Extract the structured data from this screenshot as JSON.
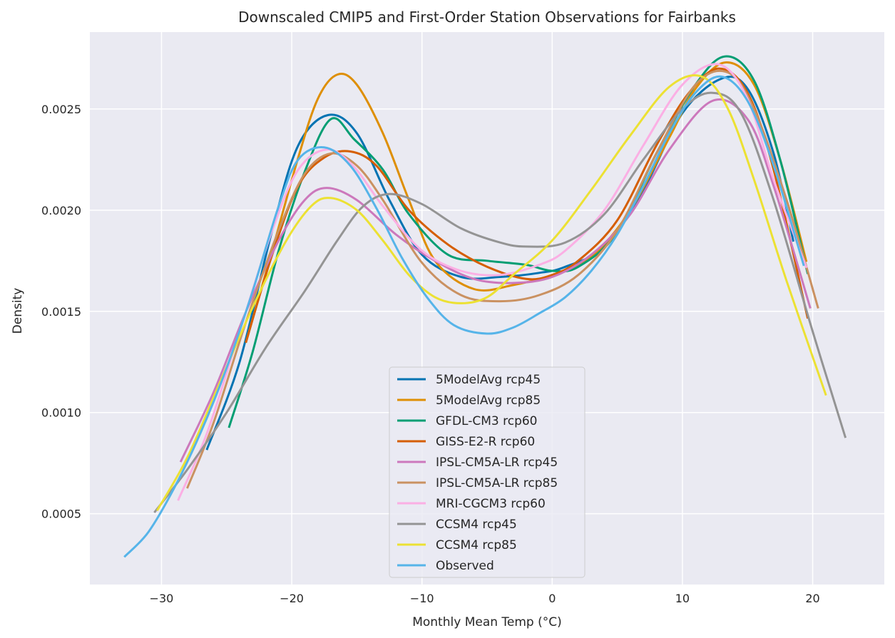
{
  "chart_data": {
    "type": "line",
    "title": "Downscaled CMIP5 and First-Order Station Observations for Fairbanks",
    "xlabel": "Monthly Mean Temp (°C)",
    "ylabel": "Density",
    "xlim": [
      -35.5,
      25.5
    ],
    "ylim": [
      0.00015,
      0.00288
    ],
    "xticks": [
      -30,
      -20,
      -10,
      0,
      10,
      20
    ],
    "xtick_labels": [
      "−30",
      "−20",
      "−10",
      "0",
      "10",
      "20"
    ],
    "yticks": [
      0.0005,
      0.001,
      0.0015,
      0.002,
      0.0025
    ],
    "ytick_labels": [
      "0.0005",
      "0.0010",
      "0.0015",
      "0.0020",
      "0.0025"
    ],
    "grid": true,
    "legend_position": "lower-center",
    "series": [
      {
        "name": "5ModelAvg rcp45",
        "color": "#0173b2",
        "x": [
          -26.5,
          -24,
          -21.5,
          -19.5,
          -17.2,
          -15,
          -12.5,
          -10,
          -7,
          -4,
          -1,
          1,
          4,
          7,
          10,
          13,
          15,
          17,
          18.5
        ],
        "y": [
          0.00082,
          0.00125,
          0.0019,
          0.00232,
          0.00247,
          0.00238,
          0.00205,
          0.00178,
          0.00167,
          0.00167,
          0.00169,
          0.00172,
          0.00182,
          0.0021,
          0.00248,
          0.00265,
          0.0026,
          0.00228,
          0.00185
        ]
      },
      {
        "name": "5ModelAvg rcp85",
        "color": "#de8f05",
        "x": [
          -23.5,
          -21.5,
          -19.5,
          -18,
          -16.5,
          -15,
          -13,
          -11,
          -9,
          -6,
          -3,
          0,
          3,
          6,
          9,
          11,
          13.3,
          15.5,
          17.5,
          19.5
        ],
        "y": [
          0.00135,
          0.0018,
          0.00226,
          0.00255,
          0.00267,
          0.00262,
          0.00238,
          0.00205,
          0.00175,
          0.00161,
          0.00163,
          0.00168,
          0.00177,
          0.002,
          0.00236,
          0.0026,
          0.00273,
          0.00262,
          0.00225,
          0.00175
        ]
      },
      {
        "name": "GFDL-CM3 rcp60",
        "color": "#029e73",
        "x": [
          -24.8,
          -23,
          -21,
          -19,
          -17,
          -15.2,
          -13,
          -11,
          -8,
          -5,
          -2,
          0,
          2,
          5,
          8,
          11,
          13.3,
          15.5,
          17.5,
          19.6
        ],
        "y": [
          0.00093,
          0.0013,
          0.0018,
          0.00219,
          0.00245,
          0.00235,
          0.0022,
          0.00198,
          0.00178,
          0.00175,
          0.00173,
          0.0017,
          0.00172,
          0.00189,
          0.00228,
          0.00262,
          0.00276,
          0.00264,
          0.00225,
          0.00169
        ]
      },
      {
        "name": "GISS-E2-R rcp60",
        "color": "#d55e00",
        "x": [
          -23.5,
          -21.5,
          -19.5,
          -17.5,
          -15.5,
          -13.5,
          -11,
          -8,
          -5,
          -2,
          0,
          2,
          5,
          8,
          10.5,
          12.8,
          15,
          17,
          19.6
        ],
        "y": [
          0.00135,
          0.00178,
          0.00212,
          0.00226,
          0.00229,
          0.00222,
          0.002,
          0.00183,
          0.00172,
          0.00166,
          0.00168,
          0.00175,
          0.00195,
          0.00232,
          0.00258,
          0.0027,
          0.00258,
          0.0022,
          0.00147
        ]
      },
      {
        "name": "IPSL-CM5A-LR rcp45",
        "color": "#cc78bc",
        "x": [
          -28.5,
          -26,
          -23.5,
          -21,
          -19,
          -17.3,
          -15,
          -12,
          -9,
          -6,
          -3,
          0,
          3,
          6,
          9,
          12.3,
          15,
          17,
          19.8
        ],
        "y": [
          0.00076,
          0.0011,
          0.0015,
          0.00185,
          0.00205,
          0.00211,
          0.00205,
          0.00188,
          0.00175,
          0.00166,
          0.00164,
          0.00167,
          0.00178,
          0.00198,
          0.0023,
          0.00254,
          0.00245,
          0.00212,
          0.00152
        ]
      },
      {
        "name": "IPSL-CM5A-LR rcp85",
        "color": "#ca9161",
        "x": [
          -28,
          -26,
          -23.5,
          -21,
          -19,
          -17,
          -15,
          -13,
          -10,
          -7,
          -4,
          -1,
          2,
          5,
          8,
          11,
          13.5,
          15.5,
          18,
          20.4
        ],
        "y": [
          0.00063,
          0.00095,
          0.00145,
          0.0019,
          0.00218,
          0.00228,
          0.00222,
          0.00205,
          0.00174,
          0.00158,
          0.00155,
          0.00158,
          0.00168,
          0.0019,
          0.00228,
          0.00262,
          0.00268,
          0.0025,
          0.00205,
          0.00152
        ]
      },
      {
        "name": "MRI-CGCM3 rcp60",
        "color": "#fbafe4",
        "x": [
          -28.7,
          -26.5,
          -24,
          -21.5,
          -19.5,
          -17.3,
          -15.3,
          -13,
          -10,
          -7,
          -4,
          -1,
          1,
          4,
          7,
          10,
          12.8,
          15,
          17,
          19.5
        ],
        "y": [
          0.00057,
          0.0009,
          0.0014,
          0.0019,
          0.0022,
          0.0023,
          0.00222,
          0.00202,
          0.0018,
          0.0017,
          0.00168,
          0.00173,
          0.0018,
          0.002,
          0.00232,
          0.00262,
          0.00272,
          0.00255,
          0.00215,
          0.00172
        ]
      },
      {
        "name": "CCSM4 rcp45",
        "color": "#949494",
        "x": [
          -30.5,
          -28,
          -25,
          -22,
          -19,
          -16.5,
          -14.5,
          -12.5,
          -10,
          -7,
          -4,
          -2,
          1,
          4,
          7,
          10,
          12.3,
          14.5,
          17,
          20,
          22.5
        ],
        "y": [
          0.00051,
          0.00072,
          0.001,
          0.00132,
          0.0016,
          0.00185,
          0.00202,
          0.00208,
          0.00203,
          0.00191,
          0.00184,
          0.00182,
          0.00184,
          0.00198,
          0.00225,
          0.0025,
          0.00258,
          0.00248,
          0.00205,
          0.0014,
          0.00088
        ]
      },
      {
        "name": "CCSM4 rcp85",
        "color": "#ece133",
        "x": [
          -30.3,
          -28,
          -25.5,
          -23,
          -20.5,
          -18.5,
          -17,
          -15,
          -13,
          -11,
          -9,
          -7,
          -5,
          -3,
          0,
          3,
          6,
          9,
          11.5,
          13.5,
          15.5,
          18,
          21
        ],
        "y": [
          0.00052,
          0.00078,
          0.00115,
          0.00152,
          0.00184,
          0.00202,
          0.00206,
          0.002,
          0.00185,
          0.00168,
          0.00157,
          0.00154,
          0.00157,
          0.00168,
          0.00185,
          0.0021,
          0.00237,
          0.00261,
          0.00266,
          0.0025,
          0.00215,
          0.00165,
          0.00109
        ]
      },
      {
        "name": "Observed",
        "color": "#56b4e9",
        "x": [
          -32.8,
          -31,
          -29,
          -27,
          -25,
          -23,
          -21,
          -19.5,
          -17.5,
          -15.5,
          -13.5,
          -11.5,
          -9.5,
          -7.5,
          -5,
          -3,
          -1,
          1,
          3,
          5,
          7,
          9,
          11,
          13,
          15,
          17,
          19.3
        ],
        "y": [
          0.00029,
          0.00041,
          0.00063,
          0.0009,
          0.00122,
          0.0016,
          0.00202,
          0.00225,
          0.00231,
          0.00222,
          0.00201,
          0.00176,
          0.00156,
          0.00143,
          0.00139,
          0.00142,
          0.00149,
          0.00157,
          0.0017,
          0.00188,
          0.00212,
          0.00238,
          0.00258,
          0.00266,
          0.00254,
          0.00222,
          0.00173
        ]
      }
    ]
  }
}
